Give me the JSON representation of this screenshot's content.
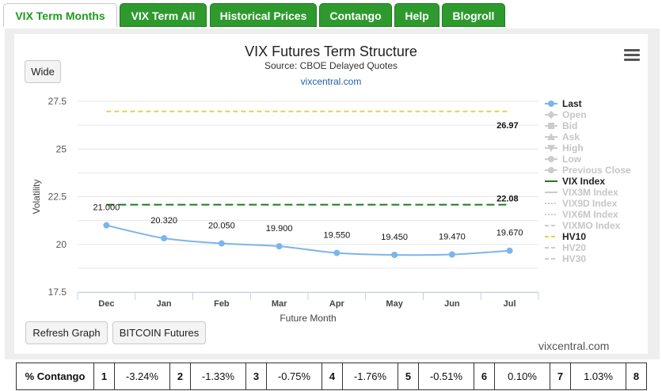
{
  "tabs": [
    {
      "label": "VIX Term Months",
      "active": true
    },
    {
      "label": "VIX Term All",
      "active": false
    },
    {
      "label": "Historical Prices",
      "active": false
    },
    {
      "label": "Contango",
      "active": false
    },
    {
      "label": "Help",
      "active": false
    },
    {
      "label": "Blogroll",
      "active": false
    }
  ],
  "buttons": {
    "wide": "Wide",
    "refresh": "Refresh Graph",
    "bitcoin": "BITCOIN Futures"
  },
  "chart": {
    "title": "VIX Futures Term Structure",
    "subtitle": "Source: CBOE Delayed Quotes",
    "link": "vixcentral.com",
    "watermark": "vixcentral.com",
    "menu_icon": "hamburger-menu-icon"
  },
  "chart_data": {
    "type": "line",
    "xlabel": "Future Month",
    "ylabel": "Volatility",
    "ylim": [
      17.5,
      27.5
    ],
    "yticks": [
      "27.5",
      "25",
      "22.5",
      "20",
      "17.5"
    ],
    "categories": [
      "Dec",
      "Jan",
      "Feb",
      "Mar",
      "Apr",
      "May",
      "Jun",
      "Jul"
    ],
    "series": [
      {
        "name": "Last",
        "values": [
          21.0,
          20.32,
          20.05,
          19.9,
          19.55,
          19.45,
          19.47,
          19.67
        ],
        "labels": [
          "21.000",
          "20.320",
          "20.050",
          "19.900",
          "19.550",
          "19.450",
          "19.470",
          "19.670"
        ],
        "color": "#7cb5ec"
      },
      {
        "name": "VIX Index",
        "value": 22.08,
        "label": "22.08",
        "color": "#1e7a1e"
      },
      {
        "name": "HV10",
        "value": 26.97,
        "label": "26.97",
        "color": "#e4d354"
      }
    ],
    "legend_position": "right",
    "grid": true
  },
  "legend": [
    {
      "name": "Last",
      "on": true,
      "sym": "dot-line",
      "color": "#7cb5ec"
    },
    {
      "name": "Open",
      "on": false,
      "sym": "diamond",
      "color": "#cccccc"
    },
    {
      "name": "Bid",
      "on": false,
      "sym": "square",
      "color": "#cccccc"
    },
    {
      "name": "Ask",
      "on": false,
      "sym": "triangle",
      "color": "#cccccc"
    },
    {
      "name": "High",
      "on": false,
      "sym": "triangle-down",
      "color": "#cccccc"
    },
    {
      "name": "Low",
      "on": false,
      "sym": "dot-line",
      "color": "#cccccc"
    },
    {
      "name": "Previous Close",
      "on": false,
      "sym": "dot-line",
      "color": "#cccccc"
    },
    {
      "name": "VIX Index",
      "on": true,
      "sym": "solid",
      "color": "#1e7a1e"
    },
    {
      "name": "VIX3M Index",
      "on": false,
      "sym": "solid",
      "color": "#cccccc"
    },
    {
      "name": "VIX9D Index",
      "on": false,
      "sym": "dotted",
      "color": "#cccccc"
    },
    {
      "name": "VIX6M Index",
      "on": false,
      "sym": "dotted",
      "color": "#cccccc"
    },
    {
      "name": "VIXMO Index",
      "on": false,
      "sym": "dashed",
      "color": "#cccccc"
    },
    {
      "name": "HV10",
      "on": true,
      "sym": "dashed",
      "color": "#e4d354"
    },
    {
      "name": "HV20",
      "on": false,
      "sym": "dashed",
      "color": "#cccccc"
    },
    {
      "name": "HV30",
      "on": false,
      "sym": "dashed",
      "color": "#cccccc"
    }
  ],
  "contango": {
    "header": "% Contango",
    "cells": [
      "1",
      "-3.24%",
      "2",
      "-1.33%",
      "3",
      "-0.75%",
      "4",
      "-1.76%",
      "5",
      "-0.51%",
      "6",
      "0.10%",
      "7",
      "1.03%",
      "8"
    ]
  }
}
